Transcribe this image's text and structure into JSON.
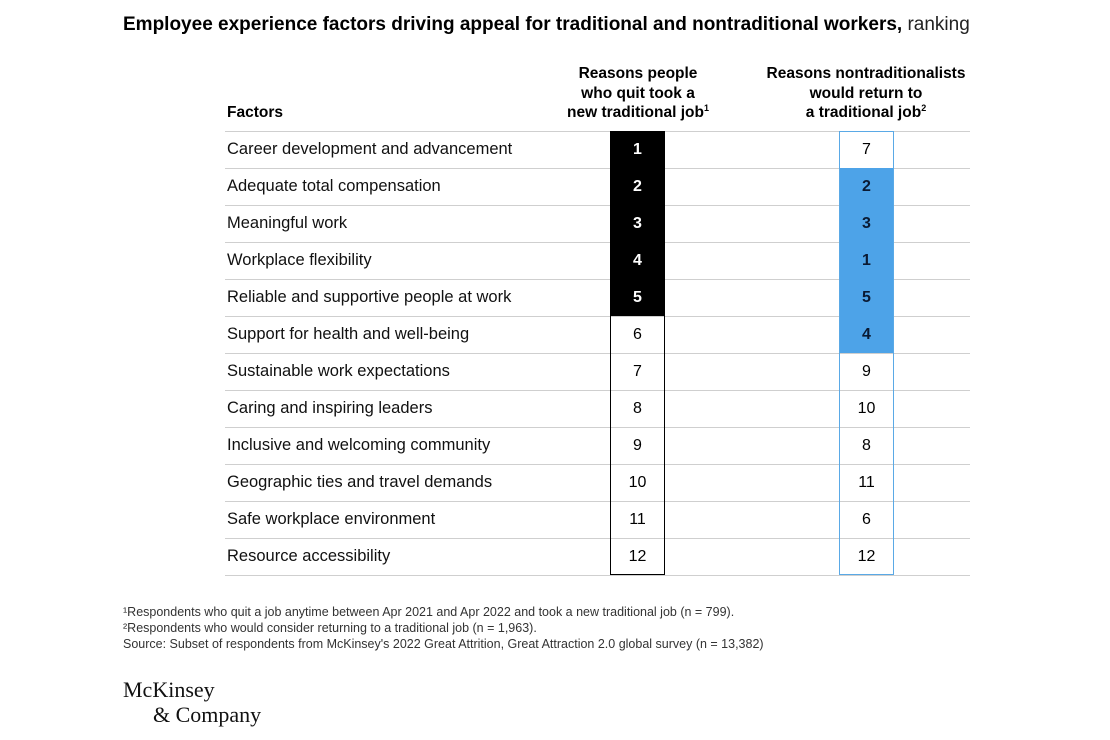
{
  "title": {
    "main": "Employee experience factors driving appeal for traditional and nontraditional workers,",
    "unit": "ranking"
  },
  "headers": {
    "factors": "Factors",
    "col1_lines": [
      "Reasons people",
      "who quit took a",
      "new traditional job"
    ],
    "col1_note": "1",
    "col2_lines": [
      "Reasons nontraditionalists",
      "would return to",
      "a traditional job"
    ],
    "col2_note": "2"
  },
  "colors": {
    "col1_highlight": "#000000",
    "col2_highlight": "#4da3e8",
    "col2_border": "#5aa9e6"
  },
  "chart_data": {
    "type": "table",
    "title": "Employee experience factors driving appeal for traditional and nontraditional workers, ranking",
    "columns": [
      "Factors",
      "Reasons people who quit took a new traditional job",
      "Reasons nontraditionalists would return to a traditional job"
    ],
    "highlight_top_n": 5,
    "rows": [
      {
        "factor": "Career development and advancement",
        "rank_quit": 1,
        "rank_return": 7
      },
      {
        "factor": "Adequate total compensation",
        "rank_quit": 2,
        "rank_return": 2
      },
      {
        "factor": "Meaningful work",
        "rank_quit": 3,
        "rank_return": 3
      },
      {
        "factor": "Workplace flexibility",
        "rank_quit": 4,
        "rank_return": 1
      },
      {
        "factor": "Reliable and supportive people at work",
        "rank_quit": 5,
        "rank_return": 5
      },
      {
        "factor": "Support for health and well-being",
        "rank_quit": 6,
        "rank_return": 4
      },
      {
        "factor": "Sustainable work expectations",
        "rank_quit": 7,
        "rank_return": 9
      },
      {
        "factor": "Caring and inspiring leaders",
        "rank_quit": 8,
        "rank_return": 10
      },
      {
        "factor": "Inclusive and welcoming community",
        "rank_quit": 9,
        "rank_return": 8
      },
      {
        "factor": "Geographic ties and travel demands",
        "rank_quit": 10,
        "rank_return": 11
      },
      {
        "factor": "Safe workplace environment",
        "rank_quit": 11,
        "rank_return": 6
      },
      {
        "factor": "Resource accessibility",
        "rank_quit": 12,
        "rank_return": 12
      }
    ]
  },
  "footnotes": [
    "¹Respondents who quit a job anytime between Apr 2021 and Apr 2022 and took a new traditional job (n = 799).",
    "²Respondents who would consider returning to a traditional job (n = 1,963).",
    " Source: Subset of respondents from McKinsey's 2022 Great Attrition, Great Attraction 2.0 global survey (n = 13,382)"
  ],
  "logo": {
    "line1": "McKinsey",
    "line2": "& Company"
  }
}
